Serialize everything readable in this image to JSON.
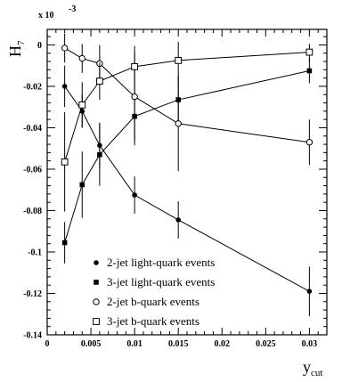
{
  "chart_data": {
    "type": "scatter",
    "xlabel": "y",
    "xlabel_sub": "cut",
    "ylabel": "H",
    "ylabel_sub": "7",
    "y_multiplier_label": "x 10",
    "y_multiplier_exp": "-3",
    "xlim": [
      0,
      0.032
    ],
    "ylim": [
      -0.14,
      0.0075
    ],
    "x_ticks": [
      0,
      0.005,
      0.01,
      0.015,
      0.02,
      0.025,
      0.03
    ],
    "x_tick_labels": [
      "0",
      "0.005",
      "0.01",
      "0.015",
      "0.02",
      "0.025",
      "0.03"
    ],
    "y_ticks": [
      -0.14,
      -0.12,
      -0.1,
      -0.08,
      -0.06,
      -0.04,
      -0.02,
      0
    ],
    "y_tick_labels": [
      "-0.14",
      "-0.12",
      "-0.1",
      "-0.08",
      "-0.06",
      "-0.04",
      "-0.02",
      "0"
    ],
    "grid": false,
    "legend_position": "bottom-right",
    "series": [
      {
        "name": "2-jet light-quark events",
        "marker": "filled-circle",
        "x": [
          0.002,
          0.004,
          0.006,
          0.01,
          0.015,
          0.03
        ],
        "y": [
          -0.02,
          -0.032,
          -0.0485,
          -0.0725,
          -0.0845,
          -0.119
        ],
        "err": [
          0.01,
          0.008,
          0.011,
          0.009,
          0.009,
          0.012
        ]
      },
      {
        "name": "3-jet light-quark events",
        "marker": "filled-square",
        "x": [
          0.002,
          0.004,
          0.006,
          0.01,
          0.015,
          0.03
        ],
        "y": [
          -0.0955,
          -0.0675,
          -0.053,
          -0.0345,
          -0.0265,
          -0.0125
        ],
        "err": [
          0.01,
          0.016,
          0.015,
          0.014,
          0.011,
          0.006
        ]
      },
      {
        "name": "2-jet b-quark events",
        "marker": "open-circle",
        "x": [
          0.002,
          0.004,
          0.006,
          0.01,
          0.015,
          0.03
        ],
        "y": [
          -0.0015,
          -0.0065,
          -0.009,
          -0.025,
          -0.038,
          -0.047
        ],
        "err": [
          0.007,
          0.007,
          0.009,
          0.021,
          0.023,
          0.011
        ]
      },
      {
        "name": "3-jet b-quark events",
        "marker": "open-square",
        "x": [
          0.002,
          0.004,
          0.006,
          0.01,
          0.015,
          0.03
        ],
        "y": [
          -0.0565,
          -0.029,
          -0.0175,
          -0.0105,
          -0.0075,
          -0.0035
        ],
        "err": [
          0.024,
          0.011,
          0.009,
          0.01,
          0.009,
          0.004
        ]
      }
    ]
  }
}
